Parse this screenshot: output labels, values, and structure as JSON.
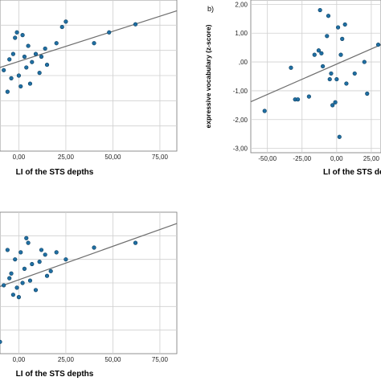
{
  "chart_data": [
    {
      "id": "a",
      "type": "scatter",
      "panel_label": "",
      "xlabel": "LI of the STS depths",
      "ylabel": "",
      "xticks": [
        "0,00",
        "25,00",
        "50,00",
        "75,00"
      ],
      "xtick_values": [
        0,
        25,
        50,
        75
      ],
      "yticks": [],
      "xlim": [
        -10,
        84
      ],
      "ylim": [
        -3.4,
        2.2
      ],
      "grid": true,
      "fit_line": {
        "x": [
          -10,
          84
        ],
        "y": [
          -0.3,
          1.8
        ]
      },
      "points": [
        {
          "x": -8,
          "y": -0.4
        },
        {
          "x": -6,
          "y": -1.2
        },
        {
          "x": -5,
          "y": 0.0
        },
        {
          "x": -4,
          "y": -0.7
        },
        {
          "x": -3,
          "y": 0.2
        },
        {
          "x": -2,
          "y": 0.8
        },
        {
          "x": -1,
          "y": 1.0
        },
        {
          "x": 0,
          "y": -0.6
        },
        {
          "x": 1,
          "y": -1.0
        },
        {
          "x": 2,
          "y": 0.9
        },
        {
          "x": 3,
          "y": 0.1
        },
        {
          "x": 4,
          "y": -0.3
        },
        {
          "x": 5,
          "y": 0.5
        },
        {
          "x": 6,
          "y": -0.9
        },
        {
          "x": 7,
          "y": -0.1
        },
        {
          "x": 9,
          "y": 0.2
        },
        {
          "x": 11,
          "y": -0.5
        },
        {
          "x": 12,
          "y": 0.1
        },
        {
          "x": 14,
          "y": 0.4
        },
        {
          "x": 15,
          "y": -0.2
        },
        {
          "x": 20,
          "y": 0.6
        },
        {
          "x": 23,
          "y": 1.2
        },
        {
          "x": 25,
          "y": 1.4
        },
        {
          "x": 40,
          "y": 0.6
        },
        {
          "x": 48,
          "y": 1.0
        },
        {
          "x": 62,
          "y": 1.3
        }
      ]
    },
    {
      "id": "b",
      "type": "scatter",
      "panel_label": "b)",
      "xlabel": "LI of the STS de",
      "ylabel": "expressive vocabulary (z-score)",
      "xticks": [
        "-50,00",
        "-25,00",
        "0,00",
        "25,00"
      ],
      "xtick_values": [
        -50,
        -25,
        0,
        25
      ],
      "yticks": [
        "2,00",
        "1,00",
        ",00",
        "-1,00",
        "-2,00",
        "-3,00"
      ],
      "ytick_values": [
        2,
        1,
        0,
        -1,
        -2,
        -3
      ],
      "xlim": [
        -62,
        32
      ],
      "ylim": [
        -3.15,
        2.15
      ],
      "grid": true,
      "fit_line": {
        "x": [
          -62,
          32
        ],
        "y": [
          -1.38,
          0.6
        ]
      },
      "points": [
        {
          "x": -52,
          "y": -1.7
        },
        {
          "x": -33,
          "y": -0.2
        },
        {
          "x": -30,
          "y": -1.3
        },
        {
          "x": -28,
          "y": -1.3
        },
        {
          "x": -20,
          "y": -1.2
        },
        {
          "x": -16,
          "y": 0.25
        },
        {
          "x": -13,
          "y": 0.4
        },
        {
          "x": -12,
          "y": 1.8
        },
        {
          "x": -11,
          "y": 0.3
        },
        {
          "x": -10,
          "y": -0.15
        },
        {
          "x": -7,
          "y": 0.9
        },
        {
          "x": -6,
          "y": 1.6
        },
        {
          "x": -5,
          "y": -0.6
        },
        {
          "x": -4,
          "y": -0.4
        },
        {
          "x": -3,
          "y": -1.5
        },
        {
          "x": -1,
          "y": -1.4
        },
        {
          "x": 0,
          "y": -0.6
        },
        {
          "x": 1,
          "y": 1.2
        },
        {
          "x": 2,
          "y": -2.6
        },
        {
          "x": 3,
          "y": 0.25
        },
        {
          "x": 4,
          "y": 0.8
        },
        {
          "x": 6,
          "y": 1.3
        },
        {
          "x": 7,
          "y": -0.75
        },
        {
          "x": 13,
          "y": -0.4
        },
        {
          "x": 20,
          "y": 0.0
        },
        {
          "x": 22,
          "y": -1.1
        },
        {
          "x": 30,
          "y": 0.6
        }
      ]
    },
    {
      "id": "c",
      "type": "scatter",
      "panel_label": "",
      "xlabel": "LI of the STS depths",
      "ylabel": "",
      "xticks": [
        "0,00",
        "25,00",
        "50,00",
        "75,00"
      ],
      "xtick_values": [
        0,
        25,
        50,
        75
      ],
      "yticks": [],
      "xlim": [
        -10,
        84
      ],
      "ylim": [
        -3.4,
        2.6
      ],
      "grid": true,
      "fit_line": {
        "x": [
          -10,
          84
        ],
        "y": [
          -0.55,
          2.12
        ]
      },
      "points": [
        {
          "x": -10,
          "y": -2.9
        },
        {
          "x": -8,
          "y": -0.5
        },
        {
          "x": -6,
          "y": 1.0
        },
        {
          "x": -5,
          "y": -0.2
        },
        {
          "x": -4,
          "y": 0.0
        },
        {
          "x": -3,
          "y": -0.9
        },
        {
          "x": -2,
          "y": 0.6
        },
        {
          "x": -1,
          "y": -0.6
        },
        {
          "x": 0,
          "y": -1.0
        },
        {
          "x": 1,
          "y": 0.9
        },
        {
          "x": 2,
          "y": -0.4
        },
        {
          "x": 3,
          "y": 0.2
        },
        {
          "x": 4,
          "y": 1.5
        },
        {
          "x": 5,
          "y": 1.3
        },
        {
          "x": 6,
          "y": -0.3
        },
        {
          "x": 7,
          "y": 0.4
        },
        {
          "x": 9,
          "y": -0.7
        },
        {
          "x": 11,
          "y": 0.5
        },
        {
          "x": 12,
          "y": 1.0
        },
        {
          "x": 14,
          "y": 0.8
        },
        {
          "x": 15,
          "y": -0.1
        },
        {
          "x": 17,
          "y": 0.1
        },
        {
          "x": 20,
          "y": 0.9
        },
        {
          "x": 25,
          "y": 0.6
        },
        {
          "x": 40,
          "y": 1.1
        },
        {
          "x": 62,
          "y": 1.3
        }
      ]
    }
  ]
}
